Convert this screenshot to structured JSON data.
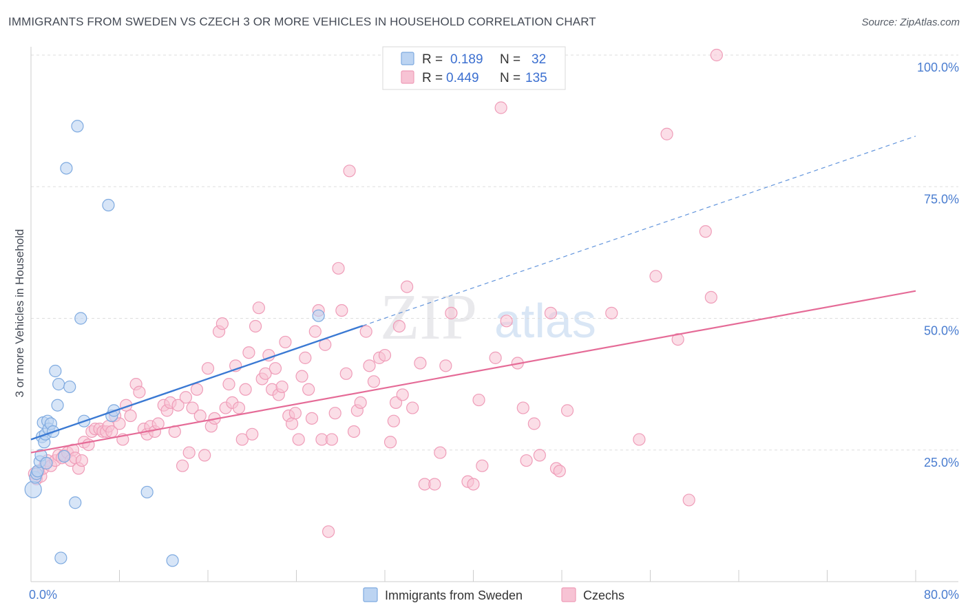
{
  "header": {
    "title": "IMMIGRANTS FROM SWEDEN VS CZECH 3 OR MORE VEHICLES IN HOUSEHOLD CORRELATION CHART",
    "source": "Source: ZipAtlas.com"
  },
  "watermark": {
    "zip": "ZIP",
    "atlas": "atlas"
  },
  "colors": {
    "sweden_fill": "#bcd4f2",
    "sweden_stroke": "#7eaae0",
    "sweden_line": "#3a79d3",
    "czech_fill": "#f7c3d4",
    "czech_stroke": "#ef9cb8",
    "czech_line": "#e56b97",
    "tick_label": "#4a7dd0",
    "grid": "#dddddd"
  },
  "legend_stats": [
    {
      "r_label": "R =",
      "r_value": "0.189",
      "n_label": "N =",
      "n_value": "32"
    },
    {
      "r_label": "R =",
      "r_value": "0.449",
      "n_label": "N =",
      "n_value": "135"
    }
  ],
  "chart_data": {
    "type": "scatter",
    "title": "IMMIGRANTS FROM SWEDEN VS CZECH 3 OR MORE VEHICLES IN HOUSEHOLD CORRELATION CHART",
    "xlabel": "",
    "ylabel": "3 or more Vehicles in Household",
    "xlim": [
      0,
      80
    ],
    "ylim": [
      0,
      100
    ],
    "x_tick_labels": [
      "0.0%",
      "80.0%"
    ],
    "y_ticks": [
      25,
      50,
      75,
      100
    ],
    "y_tick_labels": [
      "25.0%",
      "50.0%",
      "75.0%",
      "100.0%"
    ],
    "grid": true,
    "legend_position": "bottom-center",
    "series": [
      {
        "name": "Immigrants from Sweden",
        "r": 0.189,
        "n": 32,
        "trend": {
          "x0": 0,
          "y0": 27.0,
          "x1": 30,
          "y1": 48.6,
          "dashed_to_x": 80,
          "dashed_to_y": 84.6
        },
        "points": [
          [
            0.2,
            17.5
          ],
          [
            0.4,
            19.8
          ],
          [
            0.5,
            20.5
          ],
          [
            0.6,
            21.0
          ],
          [
            0.8,
            22.8
          ],
          [
            1.0,
            27.5
          ],
          [
            1.1,
            30.2
          ],
          [
            1.2,
            26.5
          ],
          [
            1.3,
            28.0
          ],
          [
            1.5,
            30.5
          ],
          [
            1.6,
            29.0
          ],
          [
            1.8,
            30.0
          ],
          [
            2.0,
            28.5
          ],
          [
            2.2,
            40.0
          ],
          [
            2.4,
            33.5
          ],
          [
            2.5,
            37.5
          ],
          [
            3.0,
            23.8
          ],
          [
            3.2,
            78.5
          ],
          [
            3.5,
            37.0
          ],
          [
            4.0,
            15.0
          ],
          [
            4.2,
            86.5
          ],
          [
            4.5,
            50.0
          ],
          [
            4.8,
            30.5
          ],
          [
            7.0,
            71.5
          ],
          [
            7.3,
            31.5
          ],
          [
            7.5,
            32.5
          ],
          [
            10.5,
            17.0
          ],
          [
            12.8,
            4.0
          ],
          [
            26.0,
            50.5
          ],
          [
            2.7,
            4.5
          ],
          [
            0.9,
            24.0
          ],
          [
            1.4,
            22.5
          ]
        ]
      },
      {
        "name": "Czechs",
        "r": 0.449,
        "n": 135,
        "trend": {
          "x0": 0,
          "y0": 24.5,
          "x1": 80,
          "y1": 55.2
        },
        "points": [
          [
            0.3,
            20.5
          ],
          [
            0.5,
            19.5
          ],
          [
            0.7,
            21.0
          ],
          [
            0.9,
            20.0
          ],
          [
            1.1,
            21.5
          ],
          [
            1.3,
            22.5
          ],
          [
            1.5,
            23.0
          ],
          [
            1.8,
            22.0
          ],
          [
            2.2,
            23.0
          ],
          [
            2.5,
            24.0
          ],
          [
            2.8,
            23.5
          ],
          [
            3.0,
            24.0
          ],
          [
            3.3,
            24.5
          ],
          [
            3.6,
            23.0
          ],
          [
            3.8,
            25.0
          ],
          [
            4.0,
            23.5
          ],
          [
            4.3,
            21.5
          ],
          [
            4.6,
            23.0
          ],
          [
            4.8,
            26.5
          ],
          [
            5.2,
            26.0
          ],
          [
            5.5,
            28.5
          ],
          [
            5.8,
            29.0
          ],
          [
            6.2,
            29.0
          ],
          [
            6.5,
            28.5
          ],
          [
            6.8,
            28.5
          ],
          [
            7.0,
            29.5
          ],
          [
            7.3,
            28.5
          ],
          [
            7.6,
            31.5
          ],
          [
            8.0,
            30.0
          ],
          [
            8.3,
            27.0
          ],
          [
            8.6,
            33.5
          ],
          [
            9.0,
            31.5
          ],
          [
            9.5,
            37.5
          ],
          [
            9.8,
            36.0
          ],
          [
            10.2,
            29.0
          ],
          [
            10.5,
            28.0
          ],
          [
            10.8,
            29.5
          ],
          [
            11.2,
            28.5
          ],
          [
            11.5,
            30.0
          ],
          [
            12.0,
            33.5
          ],
          [
            12.3,
            32.5
          ],
          [
            12.6,
            34.0
          ],
          [
            13.0,
            28.5
          ],
          [
            13.3,
            33.5
          ],
          [
            13.7,
            22.0
          ],
          [
            14.0,
            35.0
          ],
          [
            14.3,
            24.5
          ],
          [
            14.6,
            33.0
          ],
          [
            15.0,
            36.5
          ],
          [
            15.3,
            31.5
          ],
          [
            15.7,
            24.0
          ],
          [
            16.0,
            40.5
          ],
          [
            16.3,
            29.5
          ],
          [
            16.6,
            31.0
          ],
          [
            17.0,
            47.5
          ],
          [
            17.3,
            49.0
          ],
          [
            17.6,
            33.0
          ],
          [
            17.9,
            37.5
          ],
          [
            18.2,
            34.0
          ],
          [
            18.5,
            41.0
          ],
          [
            18.8,
            33.0
          ],
          [
            19.1,
            27.0
          ],
          [
            19.4,
            36.5
          ],
          [
            19.7,
            43.5
          ],
          [
            20.0,
            28.0
          ],
          [
            20.3,
            48.5
          ],
          [
            20.6,
            52.0
          ],
          [
            20.9,
            38.5
          ],
          [
            21.2,
            39.5
          ],
          [
            21.5,
            43.0
          ],
          [
            21.8,
            36.5
          ],
          [
            22.1,
            40.5
          ],
          [
            22.4,
            35.5
          ],
          [
            22.7,
            37.0
          ],
          [
            23.0,
            45.5
          ],
          [
            23.3,
            31.5
          ],
          [
            23.6,
            30.0
          ],
          [
            23.9,
            32.0
          ],
          [
            24.2,
            27.0
          ],
          [
            24.5,
            39.0
          ],
          [
            24.8,
            42.5
          ],
          [
            25.1,
            36.5
          ],
          [
            25.4,
            31.0
          ],
          [
            25.7,
            47.5
          ],
          [
            26.0,
            51.5
          ],
          [
            26.3,
            27.0
          ],
          [
            26.6,
            45.0
          ],
          [
            26.9,
            9.5
          ],
          [
            27.2,
            27.0
          ],
          [
            27.5,
            32.0
          ],
          [
            27.8,
            59.5
          ],
          [
            28.1,
            51.5
          ],
          [
            28.5,
            39.5
          ],
          [
            28.8,
            78.0
          ],
          [
            29.2,
            28.5
          ],
          [
            29.5,
            32.5
          ],
          [
            29.8,
            34.0
          ],
          [
            30.3,
            47.5
          ],
          [
            30.6,
            41.0
          ],
          [
            31.0,
            38.0
          ],
          [
            31.5,
            42.5
          ],
          [
            32.0,
            43.0
          ],
          [
            32.5,
            26.5
          ],
          [
            32.8,
            30.5
          ],
          [
            33.0,
            34.0
          ],
          [
            33.3,
            48.5
          ],
          [
            33.6,
            35.5
          ],
          [
            34.0,
            56.0
          ],
          [
            34.5,
            33.0
          ],
          [
            35.2,
            41.5
          ],
          [
            35.6,
            18.5
          ],
          [
            36.5,
            18.5
          ],
          [
            37.0,
            24.5
          ],
          [
            37.5,
            41.0
          ],
          [
            38.0,
            51.0
          ],
          [
            39.5,
            19.0
          ],
          [
            40.0,
            18.5
          ],
          [
            40.5,
            34.5
          ],
          [
            42.0,
            42.5
          ],
          [
            42.5,
            90.0
          ],
          [
            43.0,
            49.5
          ],
          [
            44.0,
            41.5
          ],
          [
            44.5,
            33.0
          ],
          [
            45.5,
            30.0
          ],
          [
            46.0,
            24.0
          ],
          [
            47.0,
            51.0
          ],
          [
            47.5,
            21.5
          ],
          [
            47.8,
            21.0
          ],
          [
            48.5,
            32.5
          ],
          [
            52.5,
            51.0
          ],
          [
            55.0,
            27.0
          ],
          [
            56.5,
            58.0
          ],
          [
            57.5,
            85.0
          ],
          [
            59.5,
            15.5
          ],
          [
            61.0,
            66.5
          ],
          [
            61.5,
            54.0
          ],
          [
            62.0,
            100.0
          ],
          [
            58.5,
            46.0
          ],
          [
            44.8,
            23.0
          ],
          [
            40.8,
            22.0
          ]
        ]
      }
    ]
  },
  "legend": {
    "items": [
      {
        "label": "Immigrants from Sweden"
      },
      {
        "label": "Czechs"
      }
    ]
  }
}
